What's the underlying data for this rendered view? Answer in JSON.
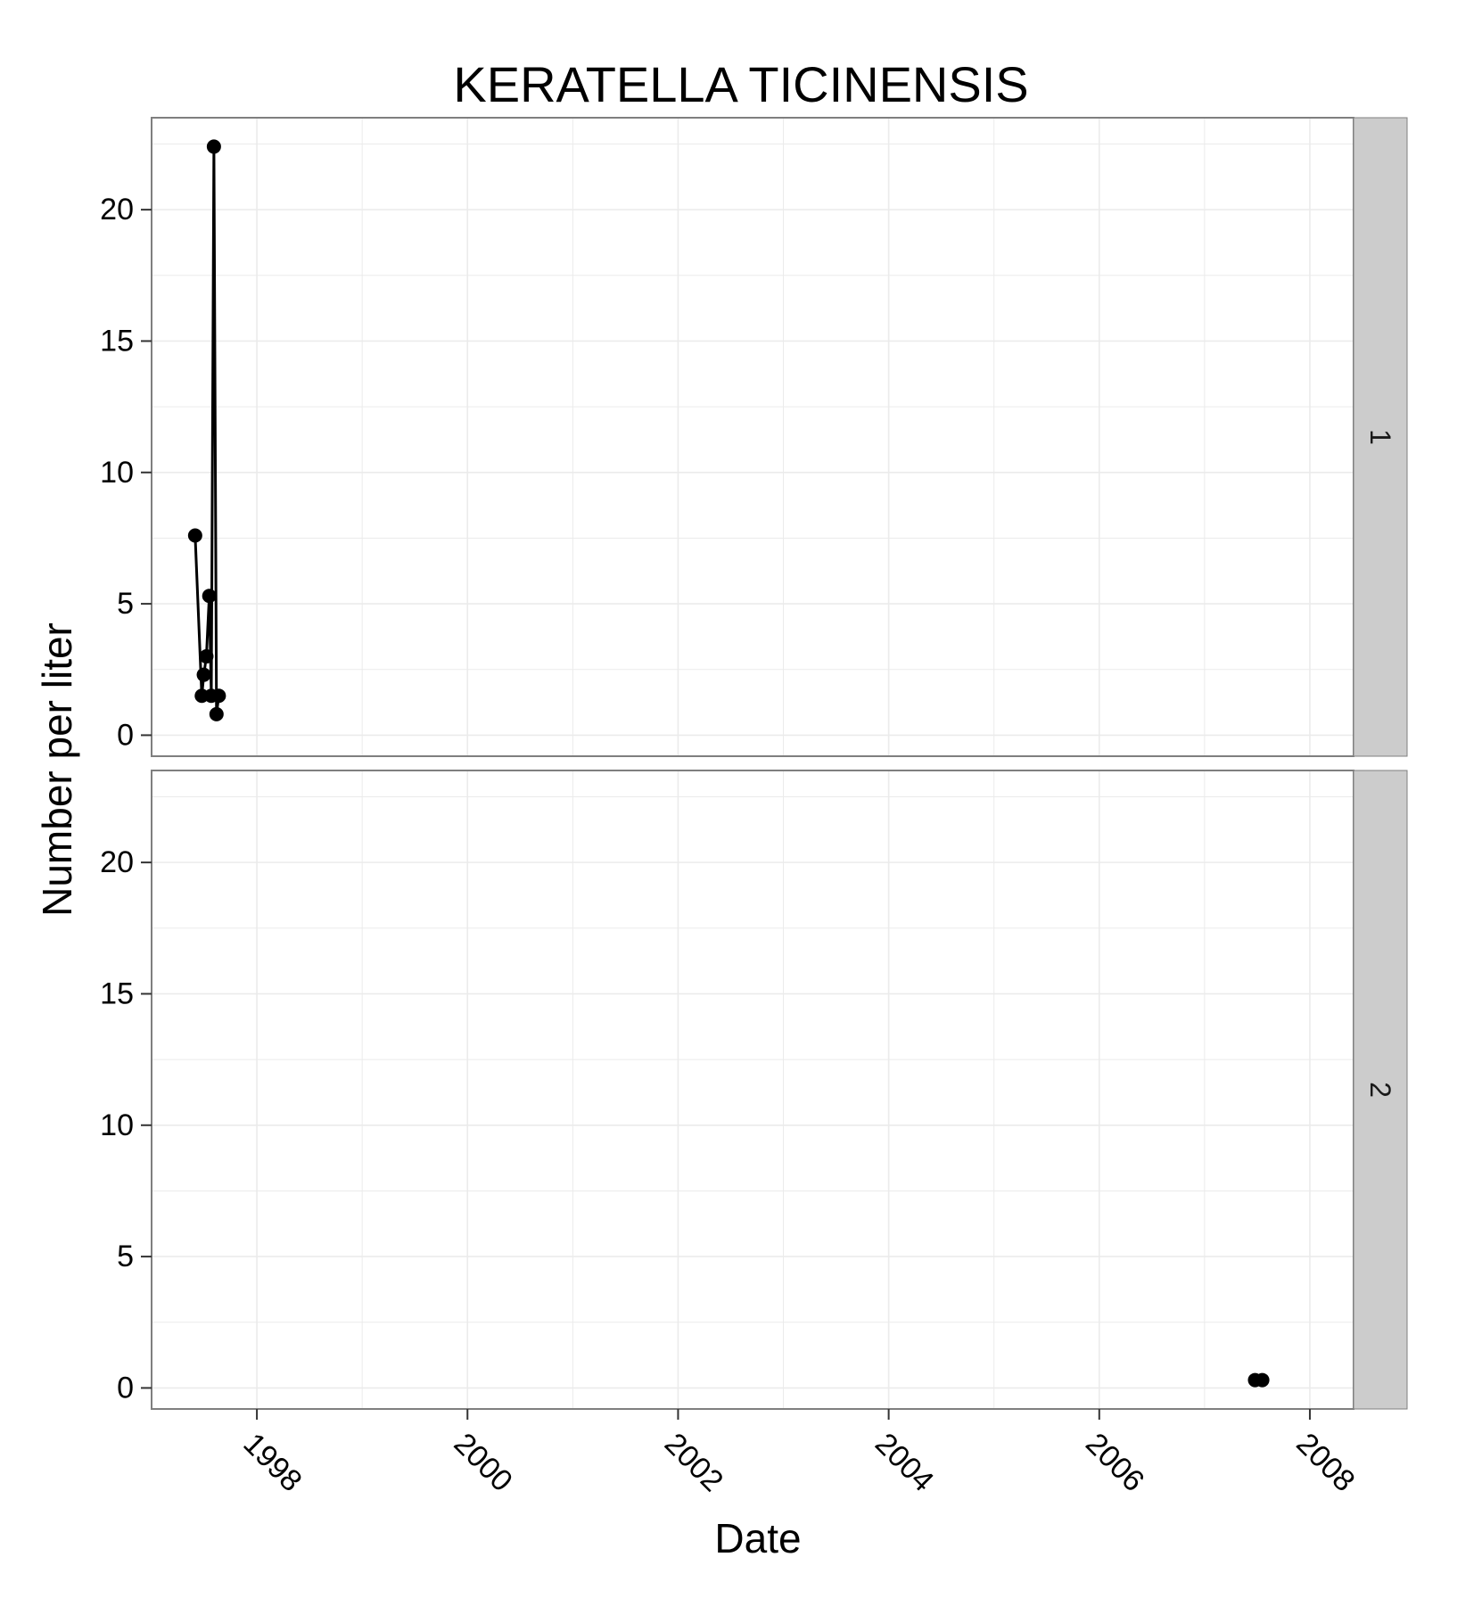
{
  "chart_data": {
    "type": "line",
    "title": "KERATELLA TICINENSIS",
    "xlabel": "Date",
    "ylabel": "Number per liter",
    "xlim": [
      "1997-01-01",
      "2008-06-01"
    ],
    "ylim": [
      -0.8,
      23.5
    ],
    "y_ticks": [
      0,
      5,
      10,
      15,
      20
    ],
    "y_tick_labels": [
      "0",
      "5",
      "10",
      "15",
      "20"
    ],
    "x_ticks": [
      "1998-01-01",
      "2000-01-01",
      "2002-01-01",
      "2004-01-01",
      "2006-01-01",
      "2008-01-01"
    ],
    "x_tick_labels": [
      "1998",
      "2000",
      "2002",
      "2004",
      "2006",
      "2008"
    ],
    "grid": true,
    "facets": [
      {
        "label": "1",
        "series": [
          {
            "points": [
              {
                "x": "1997-06-01",
                "y": 7.6
              },
              {
                "x": "1997-06-24",
                "y": 1.5
              },
              {
                "x": "1997-07-01",
                "y": 2.3
              },
              {
                "x": "1997-07-10",
                "y": 3.0
              },
              {
                "x": "1997-07-20",
                "y": 5.3
              },
              {
                "x": "1997-07-27",
                "y": 1.5
              },
              {
                "x": "1997-08-05",
                "y": 22.4
              },
              {
                "x": "1997-08-14",
                "y": 0.8
              },
              {
                "x": "1997-08-22",
                "y": 1.5
              }
            ]
          }
        ]
      },
      {
        "label": "2",
        "series": [
          {
            "points": [
              {
                "x": "2007-06-25",
                "y": 0.3
              },
              {
                "x": "2007-07-20",
                "y": 0.3
              }
            ]
          }
        ]
      }
    ]
  },
  "colors": {
    "grid": "#ebebeb",
    "panel_border": "#7f7f7f",
    "strip_fill": "#cccccc",
    "series": "#000000"
  }
}
